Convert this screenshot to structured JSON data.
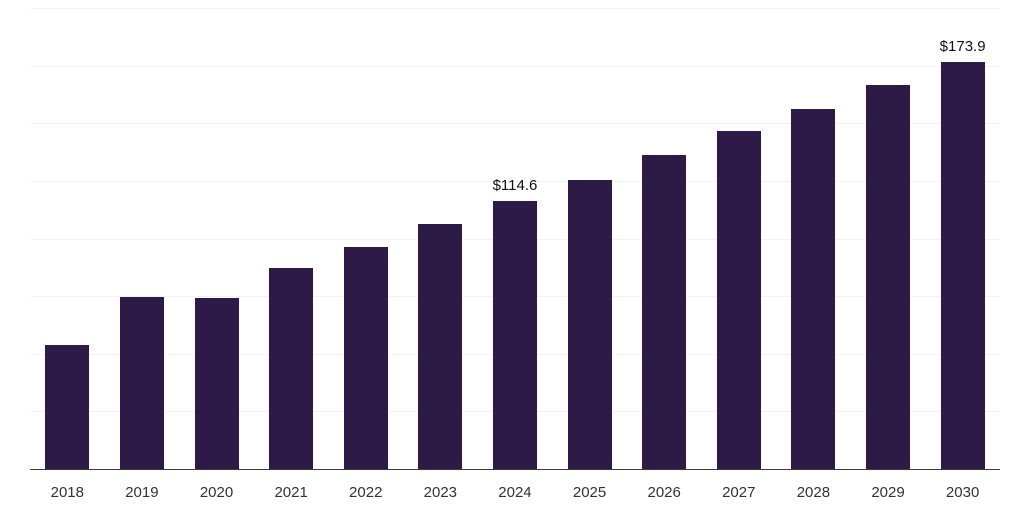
{
  "chart_data": {
    "type": "bar",
    "title": "",
    "xlabel": "",
    "ylabel": "",
    "categories": [
      "2018",
      "2019",
      "2020",
      "2021",
      "2022",
      "2023",
      "2024",
      "2025",
      "2026",
      "2027",
      "2028",
      "2029",
      "2030"
    ],
    "values": [
      52.9,
      73.3,
      72.9,
      85.7,
      95.0,
      104.9,
      114.6,
      123.6,
      134.2,
      144.5,
      153.9,
      164.1,
      173.9
    ],
    "point_labels": {
      "2024": "$114.6",
      "2030": "$173.9"
    },
    "ylim": [
      0,
      197
    ],
    "grid": "horizontal",
    "grid_divisions": 8,
    "legend_position": "none",
    "bar_color": "#2e1a47",
    "gridline_color": "#f2f2f2",
    "axis_line_color": "#3c3c3c",
    "value_label_color": "#111111",
    "tick_label_color": "#333333",
    "background_color": "#ffffff"
  }
}
